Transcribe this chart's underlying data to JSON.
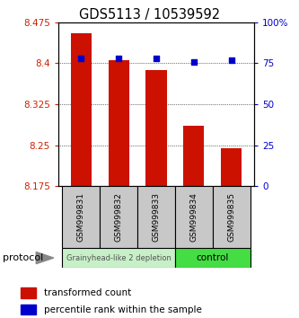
{
  "title": "GDS5113 / 10539592",
  "samples": [
    "GSM999831",
    "GSM999832",
    "GSM999833",
    "GSM999834",
    "GSM999835"
  ],
  "transformed_counts": [
    8.455,
    8.405,
    8.388,
    8.285,
    8.245
  ],
  "percentile_ranks": [
    78,
    78,
    78,
    76,
    77
  ],
  "ylim_left": [
    8.175,
    8.475
  ],
  "ylim_right": [
    0,
    100
  ],
  "yticks_left": [
    8.175,
    8.25,
    8.325,
    8.4,
    8.475
  ],
  "yticks_right": [
    0,
    25,
    50,
    75,
    100
  ],
  "bar_color": "#cc1100",
  "dot_color": "#0000cc",
  "group1_samples": [
    0,
    1,
    2
  ],
  "group2_samples": [
    3,
    4
  ],
  "group1_label": "Grainyhead-like 2 depletion",
  "group2_label": "control",
  "group1_color": "#c8f0c8",
  "group2_color": "#44dd44",
  "protocol_label": "protocol",
  "legend_bar_label": "transformed count",
  "legend_dot_label": "percentile rank within the sample",
  "bar_width": 0.55,
  "base_value": 8.175,
  "background_color": "#ffffff",
  "plot_bg_color": "#ffffff",
  "tick_label_color_left": "#cc2200",
  "tick_label_color_right": "#0000cc",
  "title_fontsize": 10.5,
  "axis_fontsize": 7.5,
  "legend_fontsize": 7.5,
  "sample_fontsize": 6.5
}
